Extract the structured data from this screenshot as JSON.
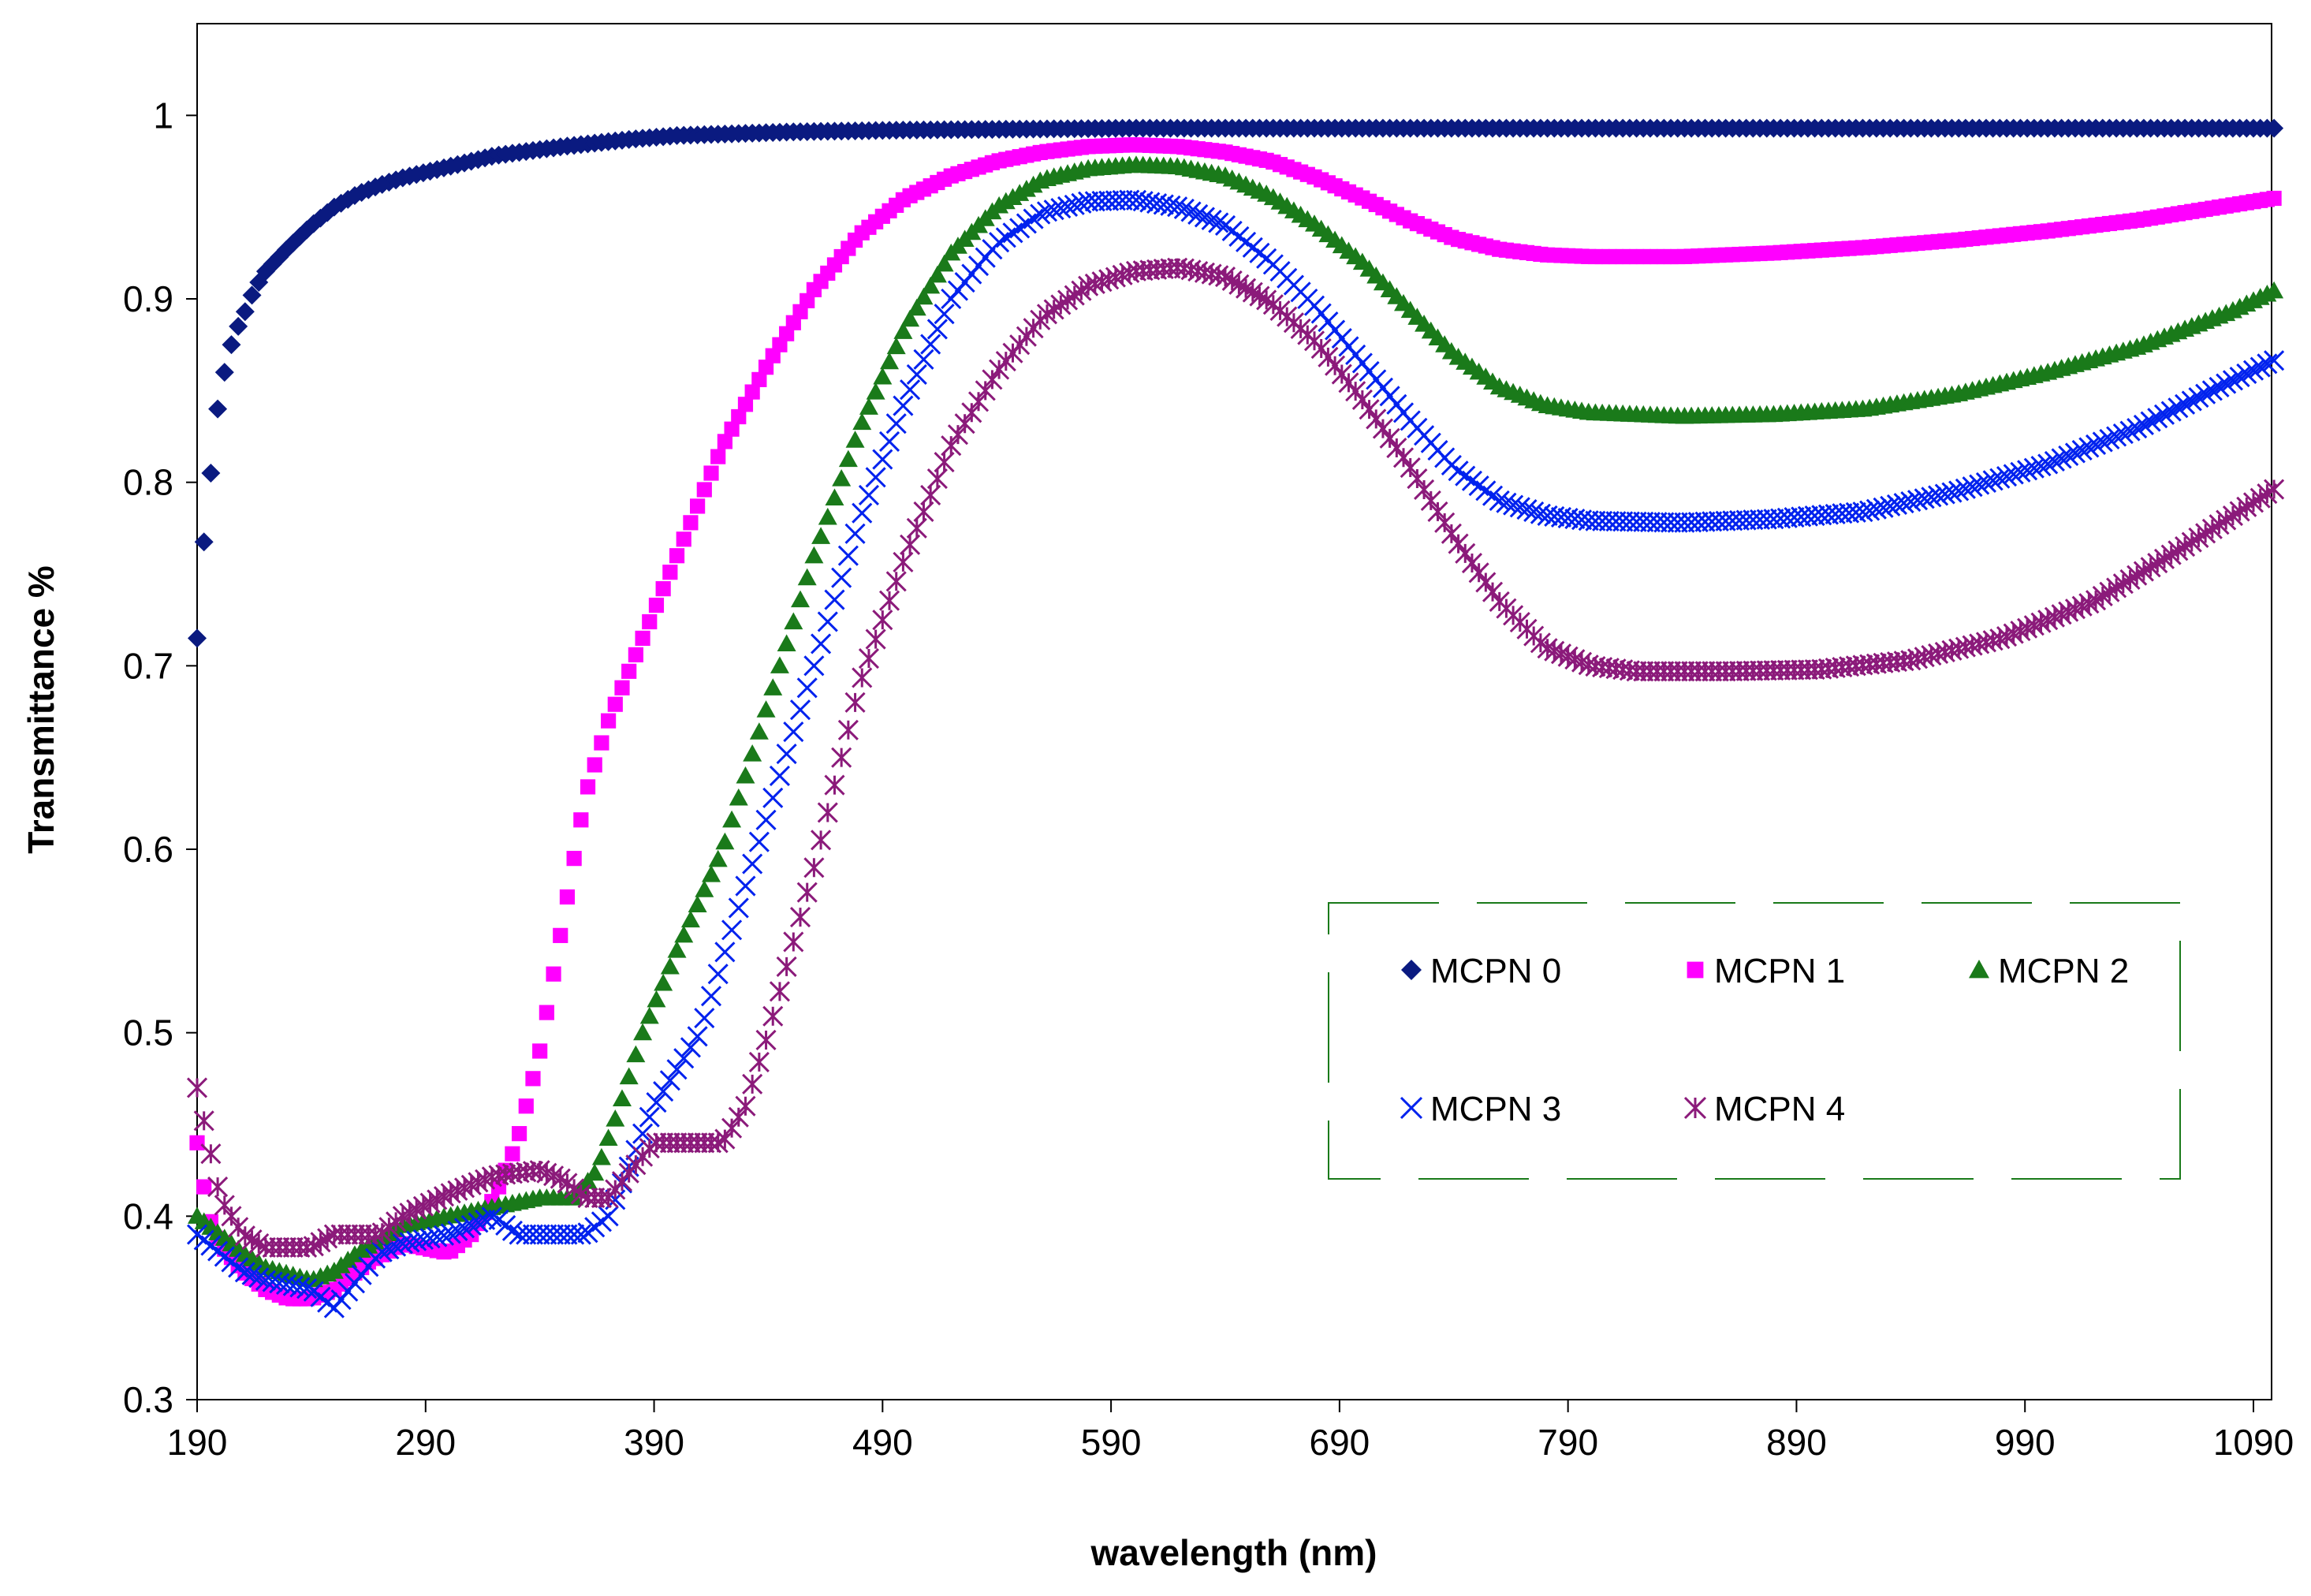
{
  "chart_data": {
    "type": "scatter",
    "title": "",
    "xlabel": "wavelength (nm)",
    "ylabel": "Transmittance %",
    "xlim": [
      190,
      1100
    ],
    "ylim": [
      0.3,
      1.05
    ],
    "xticks": [
      190,
      290,
      390,
      490,
      590,
      690,
      790,
      890,
      990,
      1090
    ],
    "yticks": [
      0.3,
      0.4,
      0.5,
      0.6,
      0.7,
      0.8,
      0.9,
      1
    ],
    "ytick_labels": [
      "0.3",
      "0.4",
      "0.5",
      "0.6",
      "0.7",
      "0.8",
      "0.9",
      "1"
    ],
    "grid": false,
    "legend_position": "center-right",
    "series": [
      {
        "name": "MCPN 0",
        "color": "#0a1a80",
        "marker": "diamond",
        "points": [
          [
            190,
            0.715
          ],
          [
            192,
            0.755
          ],
          [
            194,
            0.78
          ],
          [
            196,
            0.805
          ],
          [
            198,
            0.83
          ],
          [
            200,
            0.85
          ],
          [
            203,
            0.865
          ],
          [
            206,
            0.88
          ],
          [
            210,
            0.89
          ],
          [
            215,
            0.905
          ],
          [
            220,
            0.915
          ],
          [
            230,
            0.928
          ],
          [
            240,
            0.94
          ],
          [
            250,
            0.95
          ],
          [
            260,
            0.957
          ],
          [
            270,
            0.962
          ],
          [
            280,
            0.966
          ],
          [
            300,
            0.972
          ],
          [
            320,
            0.978
          ],
          [
            350,
            0.983
          ],
          [
            380,
            0.987
          ],
          [
            400,
            0.989
          ],
          [
            450,
            0.991
          ],
          [
            500,
            0.992
          ],
          [
            600,
            0.993
          ],
          [
            800,
            0.993
          ],
          [
            1000,
            0.993
          ],
          [
            1100,
            0.993
          ]
        ]
      },
      {
        "name": "MCPN 1",
        "color": "#ff00ff",
        "marker": "square",
        "points": [
          [
            190,
            0.44
          ],
          [
            195,
            0.4
          ],
          [
            200,
            0.385
          ],
          [
            210,
            0.37
          ],
          [
            220,
            0.36
          ],
          [
            230,
            0.355
          ],
          [
            240,
            0.355
          ],
          [
            250,
            0.36
          ],
          [
            265,
            0.375
          ],
          [
            280,
            0.385
          ],
          [
            300,
            0.38
          ],
          [
            310,
            0.39
          ],
          [
            320,
            0.41
          ],
          [
            330,
            0.44
          ],
          [
            340,
            0.49
          ],
          [
            350,
            0.56
          ],
          [
            360,
            0.63
          ],
          [
            370,
            0.67
          ],
          [
            380,
            0.7
          ],
          [
            390,
            0.73
          ],
          [
            400,
            0.76
          ],
          [
            410,
            0.79
          ],
          [
            420,
            0.82
          ],
          [
            440,
            0.865
          ],
          [
            460,
            0.905
          ],
          [
            480,
            0.935
          ],
          [
            500,
            0.955
          ],
          [
            520,
            0.967
          ],
          [
            540,
            0.975
          ],
          [
            560,
            0.98
          ],
          [
            580,
            0.983
          ],
          [
            600,
            0.984
          ],
          [
            620,
            0.983
          ],
          [
            640,
            0.98
          ],
          [
            660,
            0.975
          ],
          [
            680,
            0.966
          ],
          [
            700,
            0.955
          ],
          [
            720,
            0.943
          ],
          [
            740,
            0.933
          ],
          [
            760,
            0.927
          ],
          [
            780,
            0.924
          ],
          [
            800,
            0.923
          ],
          [
            840,
            0.923
          ],
          [
            880,
            0.925
          ],
          [
            920,
            0.928
          ],
          [
            960,
            0.932
          ],
          [
            1000,
            0.937
          ],
          [
            1040,
            0.943
          ],
          [
            1080,
            0.951
          ],
          [
            1100,
            0.955
          ]
        ]
      },
      {
        "name": "MCPN 2",
        "color": "#1a7a1a",
        "marker": "triangle",
        "points": [
          [
            190,
            0.4
          ],
          [
            200,
            0.39
          ],
          [
            210,
            0.38
          ],
          [
            220,
            0.372
          ],
          [
            240,
            0.365
          ],
          [
            250,
            0.37
          ],
          [
            260,
            0.38
          ],
          [
            280,
            0.395
          ],
          [
            300,
            0.4
          ],
          [
            320,
            0.405
          ],
          [
            340,
            0.41
          ],
          [
            355,
            0.41
          ],
          [
            365,
            0.425
          ],
          [
            375,
            0.46
          ],
          [
            385,
            0.5
          ],
          [
            400,
            0.545
          ],
          [
            420,
            0.6
          ],
          [
            440,
            0.68
          ],
          [
            460,
            0.76
          ],
          [
            480,
            0.83
          ],
          [
            500,
            0.885
          ],
          [
            520,
            0.925
          ],
          [
            540,
            0.95
          ],
          [
            560,
            0.965
          ],
          [
            580,
            0.971
          ],
          [
            600,
            0.973
          ],
          [
            620,
            0.972
          ],
          [
            640,
            0.967
          ],
          [
            660,
            0.956
          ],
          [
            680,
            0.94
          ],
          [
            700,
            0.92
          ],
          [
            720,
            0.895
          ],
          [
            740,
            0.87
          ],
          [
            760,
            0.852
          ],
          [
            780,
            0.842
          ],
          [
            800,
            0.838
          ],
          [
            840,
            0.836
          ],
          [
            880,
            0.837
          ],
          [
            920,
            0.84
          ],
          [
            960,
            0.848
          ],
          [
            1000,
            0.86
          ],
          [
            1040,
            0.874
          ],
          [
            1080,
            0.893
          ],
          [
            1100,
            0.905
          ]
        ]
      },
      {
        "name": "MCPN 3",
        "color": "#0022ee",
        "marker": "x",
        "points": [
          [
            190,
            0.39
          ],
          [
            200,
            0.38
          ],
          [
            210,
            0.37
          ],
          [
            220,
            0.365
          ],
          [
            240,
            0.36
          ],
          [
            250,
            0.35
          ],
          [
            260,
            0.365
          ],
          [
            270,
            0.38
          ],
          [
            280,
            0.385
          ],
          [
            300,
            0.39
          ],
          [
            320,
            0.4
          ],
          [
            330,
            0.39
          ],
          [
            340,
            0.39
          ],
          [
            360,
            0.39
          ],
          [
            370,
            0.4
          ],
          [
            380,
            0.43
          ],
          [
            390,
            0.46
          ],
          [
            400,
            0.48
          ],
          [
            410,
            0.5
          ],
          [
            420,
            0.54
          ],
          [
            440,
            0.62
          ],
          [
            460,
            0.7
          ],
          [
            480,
            0.78
          ],
          [
            500,
            0.845
          ],
          [
            520,
            0.9
          ],
          [
            540,
            0.93
          ],
          [
            560,
            0.947
          ],
          [
            580,
            0.953
          ],
          [
            600,
            0.954
          ],
          [
            620,
            0.95
          ],
          [
            640,
            0.94
          ],
          [
            660,
            0.92
          ],
          [
            680,
            0.895
          ],
          [
            700,
            0.865
          ],
          [
            720,
            0.835
          ],
          [
            740,
            0.808
          ],
          [
            760,
            0.79
          ],
          [
            780,
            0.782
          ],
          [
            800,
            0.779
          ],
          [
            840,
            0.778
          ],
          [
            880,
            0.78
          ],
          [
            920,
            0.784
          ],
          [
            960,
            0.795
          ],
          [
            1000,
            0.81
          ],
          [
            1040,
            0.83
          ],
          [
            1080,
            0.855
          ],
          [
            1100,
            0.867
          ]
        ]
      },
      {
        "name": "MCPN 4",
        "color": "#8b1a7a",
        "marker": "star",
        "points": [
          [
            190,
            0.47
          ],
          [
            195,
            0.44
          ],
          [
            200,
            0.41
          ],
          [
            210,
            0.39
          ],
          [
            220,
            0.383
          ],
          [
            240,
            0.383
          ],
          [
            250,
            0.39
          ],
          [
            260,
            0.39
          ],
          [
            270,
            0.39
          ],
          [
            280,
            0.4
          ],
          [
            300,
            0.412
          ],
          [
            320,
            0.422
          ],
          [
            340,
            0.425
          ],
          [
            350,
            0.42
          ],
          [
            360,
            0.41
          ],
          [
            370,
            0.41
          ],
          [
            380,
            0.425
          ],
          [
            390,
            0.44
          ],
          [
            410,
            0.44
          ],
          [
            420,
            0.44
          ],
          [
            430,
            0.46
          ],
          [
            440,
            0.5
          ],
          [
            460,
            0.59
          ],
          [
            480,
            0.69
          ],
          [
            500,
            0.76
          ],
          [
            520,
            0.82
          ],
          [
            540,
            0.86
          ],
          [
            560,
            0.89
          ],
          [
            580,
            0.907
          ],
          [
            600,
            0.915
          ],
          [
            620,
            0.917
          ],
          [
            640,
            0.912
          ],
          [
            660,
            0.898
          ],
          [
            680,
            0.876
          ],
          [
            700,
            0.845
          ],
          [
            720,
            0.81
          ],
          [
            740,
            0.77
          ],
          [
            760,
            0.735
          ],
          [
            780,
            0.71
          ],
          [
            800,
            0.7
          ],
          [
            820,
            0.697
          ],
          [
            860,
            0.697
          ],
          [
            900,
            0.698
          ],
          [
            940,
            0.703
          ],
          [
            980,
            0.715
          ],
          [
            1020,
            0.735
          ],
          [
            1060,
            0.765
          ],
          [
            1100,
            0.797
          ]
        ]
      }
    ]
  }
}
